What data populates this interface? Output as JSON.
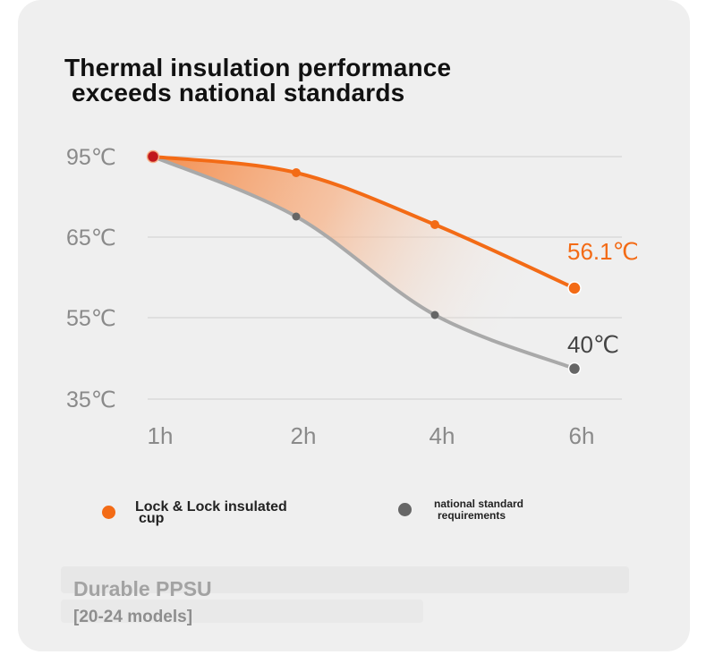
{
  "headline": {
    "line1": "Thermal insulation performance",
    "line2": "exceeds national standards"
  },
  "chart_data": {
    "type": "line",
    "categories": [
      "1h",
      "2h",
      "4h",
      "6h"
    ],
    "y_tick_labels": [
      "95℃",
      "65℃",
      "55℃",
      "35℃"
    ],
    "grid": true,
    "series": [
      {
        "name": "Lock & Lock insulated cup",
        "values": [
          95,
          91,
          80,
          56.1
        ],
        "color": "#f36b16",
        "end_label": "56.1℃"
      },
      {
        "name": "national standard requirements",
        "values": [
          95,
          77,
          55,
          40
        ],
        "color": "#a9a9a9",
        "marker_color": "#666666",
        "end_label": "40℃"
      }
    ],
    "start_marker_color": "#c0181c",
    "fill_between": true,
    "end_label_colors": [
      "#f36b16",
      "#444444"
    ]
  },
  "legend": [
    {
      "label_line1": "Lock & Lock insulated",
      "label_line2": "cup",
      "color": "#f36b16"
    },
    {
      "label_line1": "national standard",
      "label_line2": "requirements",
      "color": "#666666"
    }
  ],
  "footer": {
    "title": "Durable PPSU",
    "subtitle": "[20-24 models]"
  }
}
